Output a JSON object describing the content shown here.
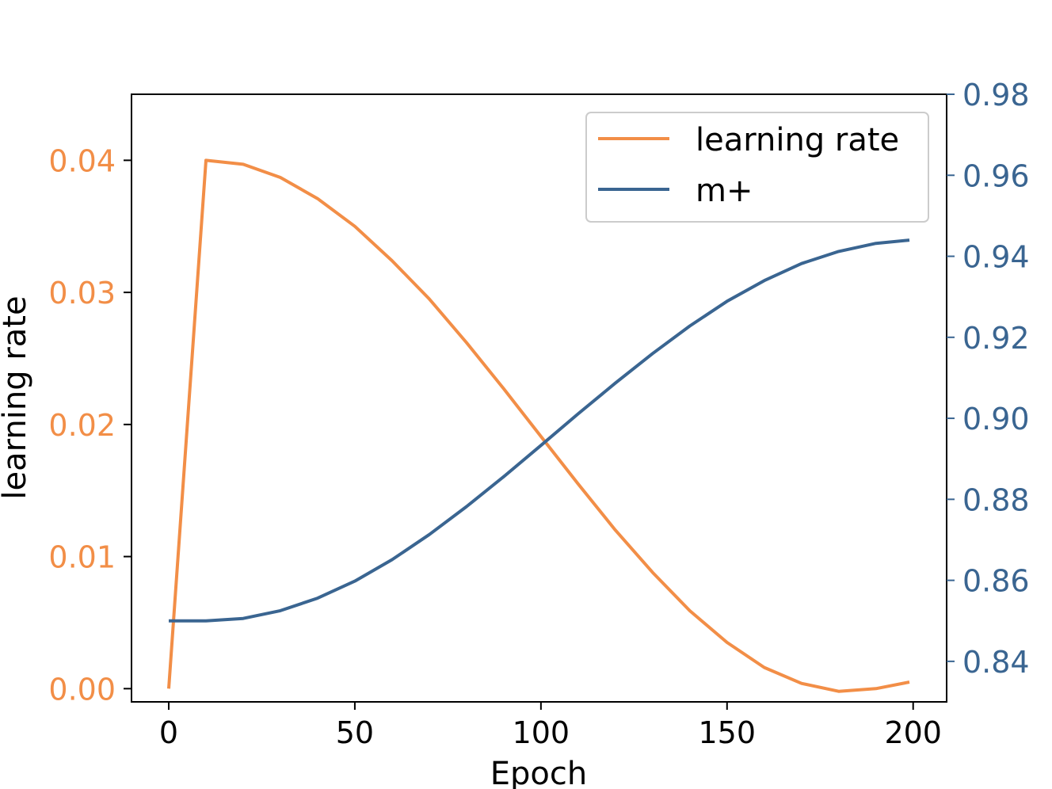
{
  "chart_data": {
    "type": "line",
    "title": "",
    "xlabel": "Epoch",
    "ylabel_left": "learning rate",
    "ylabel_right": "",
    "xlim": [
      -10,
      209
    ],
    "ylim_left": [
      -0.001,
      0.045
    ],
    "ylim_right": [
      0.83,
      0.98
    ],
    "x_ticks": [
      0,
      50,
      100,
      150,
      200
    ],
    "x_tick_labels": [
      "0",
      "50",
      "100",
      "150",
      "200"
    ],
    "y_left_ticks": [
      0.0,
      0.01,
      0.02,
      0.03,
      0.04
    ],
    "y_left_tick_labels": [
      "0.00",
      "0.01",
      "0.02",
      "0.03",
      "0.04"
    ],
    "y_right_ticks": [
      0.84,
      0.86,
      0.88,
      0.9,
      0.92,
      0.94,
      0.96,
      0.98
    ],
    "y_right_tick_labels": [
      "0.84",
      "0.86",
      "0.88",
      "0.90",
      "0.92",
      "0.94",
      "0.96",
      "0.98"
    ],
    "grid": false,
    "legend_position": "top-right",
    "colors": {
      "learning_rate": "#f28e47",
      "m_plus": "#3a6591",
      "axis": "#000000"
    },
    "series": [
      {
        "name": "learning rate",
        "axis": "left",
        "x": [
          0,
          10,
          20,
          30,
          40,
          50,
          60,
          70,
          80,
          90,
          100,
          110,
          120,
          130,
          140,
          150,
          160,
          170,
          180,
          190,
          199
        ],
        "y": [
          0.0,
          0.04,
          0.0397,
          0.0387,
          0.0371,
          0.035,
          0.0324,
          0.0295,
          0.0262,
          0.0227,
          0.0191,
          0.0155,
          0.012,
          0.0088,
          0.0059,
          0.0035,
          0.0016,
          0.0004,
          -0.0002,
          0.0,
          0.0005
        ]
      },
      {
        "name": "m+",
        "axis": "right",
        "x": [
          0,
          10,
          20,
          30,
          40,
          50,
          60,
          70,
          80,
          90,
          100,
          110,
          120,
          130,
          140,
          150,
          160,
          170,
          180,
          190,
          199
        ],
        "y": [
          0.85,
          0.85,
          0.8506,
          0.8525,
          0.8556,
          0.8598,
          0.8651,
          0.8713,
          0.8782,
          0.8856,
          0.8933,
          0.9011,
          0.9087,
          0.916,
          0.9228,
          0.9289,
          0.934,
          0.9382,
          0.9412,
          0.9432,
          0.944
        ]
      }
    ]
  }
}
